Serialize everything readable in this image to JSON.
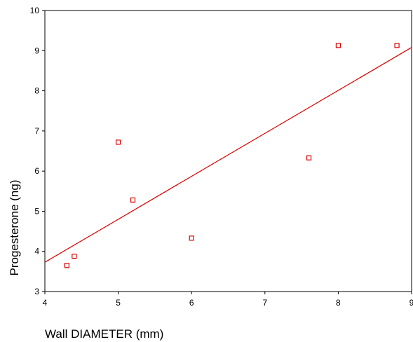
{
  "chart_data": {
    "type": "scatter",
    "title": "",
    "xlabel": "Wall DIAMETER (mm)",
    "ylabel": "Progesterone (ng)",
    "xlim": [
      4,
      9
    ],
    "ylim": [
      3,
      10
    ],
    "xticks": [
      "4",
      "5",
      "6",
      "7",
      "8",
      "9"
    ],
    "yticks": [
      "3",
      "4",
      "5",
      "6",
      "7",
      "8",
      "9",
      "10"
    ],
    "points": [
      {
        "x": 4.3,
        "y": 3.65
      },
      {
        "x": 4.4,
        "y": 3.88
      },
      {
        "x": 5.0,
        "y": 6.72
      },
      {
        "x": 5.2,
        "y": 5.28
      },
      {
        "x": 6.0,
        "y": 4.33
      },
      {
        "x": 7.6,
        "y": 6.33
      },
      {
        "x": 8.0,
        "y": 9.13
      },
      {
        "x": 8.8,
        "y": 9.13
      }
    ],
    "fit_line": {
      "x": [
        4,
        9
      ],
      "y": [
        3.73,
        9.08
      ]
    },
    "grid": false,
    "marker_color": "#dd0000",
    "line_color": "#dd0000"
  }
}
